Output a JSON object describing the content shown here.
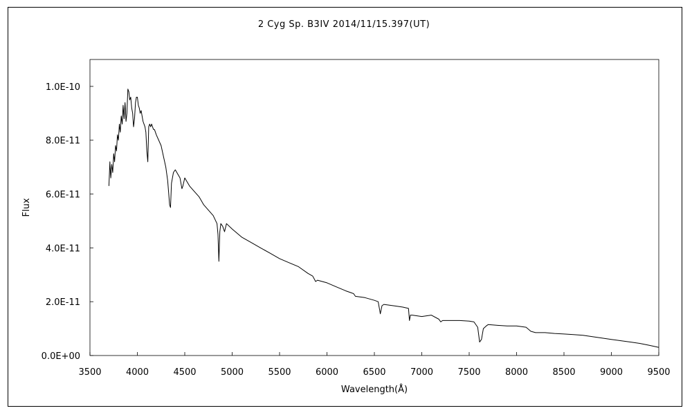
{
  "chart_data": {
    "type": "line",
    "title": "2 Cyg    Sp. B3IV    2014/11/15.397(UT)",
    "xlabel": "Wavelength(Å)",
    "ylabel": "Flux",
    "xlim": [
      3500,
      9500
    ],
    "ylim": [
      0,
      1.1e-10
    ],
    "x_ticks": [
      3500,
      4000,
      4500,
      5000,
      5500,
      6000,
      6500,
      7000,
      7500,
      8000,
      8500,
      9000,
      9500
    ],
    "x_tick_labels": [
      "3500",
      "4000",
      "4500",
      "5000",
      "5500",
      "6000",
      "6500",
      "7000",
      "7500",
      "8000",
      "8500",
      "9000",
      "9500"
    ],
    "y_ticks": [
      0,
      2e-11,
      4e-11,
      6e-11,
      8e-11,
      1e-10
    ],
    "y_tick_labels": [
      "0.0E+00",
      "2.0E-11",
      "4.0E-11",
      "6.0E-11",
      "8.0E-11",
      "1.0E-10"
    ],
    "grid": false,
    "series": [
      {
        "name": "",
        "color": "#000000",
        "x": [
          3700,
          3710,
          3720,
          3730,
          3740,
          3750,
          3760,
          3770,
          3780,
          3790,
          3800,
          3810,
          3820,
          3830,
          3840,
          3850,
          3860,
          3870,
          3880,
          3890,
          3900,
          3910,
          3920,
          3930,
          3940,
          3950,
          3960,
          3970,
          3980,
          3990,
          4000,
          4010,
          4020,
          4030,
          4040,
          4050,
          4060,
          4070,
          4080,
          4090,
          4100,
          4110,
          4120,
          4130,
          4140,
          4150,
          4160,
          4170,
          4180,
          4200,
          4250,
          4300,
          4320,
          4340,
          4350,
          4360,
          4380,
          4400,
          4450,
          4470,
          4480,
          4500,
          4550,
          4600,
          4650,
          4700,
          4750,
          4800,
          4840,
          4850,
          4860,
          4870,
          4880,
          4900,
          4920,
          4940,
          5000,
          5100,
          5200,
          5300,
          5400,
          5500,
          5600,
          5700,
          5800,
          5850,
          5880,
          5900,
          6000,
          6100,
          6200,
          6280,
          6300,
          6400,
          6500,
          6540,
          6563,
          6580,
          6600,
          6700,
          6800,
          6860,
          6870,
          6880,
          6900,
          7000,
          7100,
          7180,
          7200,
          7220,
          7300,
          7400,
          7500,
          7550,
          7590,
          7610,
          7630,
          7650,
          7680,
          7700,
          7800,
          7900,
          8000,
          8100,
          8150,
          8200,
          8300,
          8400,
          8500,
          8600,
          8700,
          8800,
          8900,
          9000,
          9100,
          9200,
          9300,
          9400,
          9500
        ],
        "y": [
          6.3e-11,
          7.2e-11,
          6.6e-11,
          7.1e-11,
          6.8e-11,
          7.5e-11,
          7.2e-11,
          7.8e-11,
          7.6e-11,
          8.2e-11,
          8e-11,
          8.6e-11,
          8.3e-11,
          8.9e-11,
          8.6e-11,
          9.3e-11,
          8.8e-11,
          9.4e-11,
          8.7e-11,
          9e-11,
          9.9e-11,
          9.8e-11,
          9.5e-11,
          9.6e-11,
          9.2e-11,
          9e-11,
          8.5e-11,
          8.8e-11,
          9.4e-11,
          9.6e-11,
          9.6e-11,
          9.3e-11,
          9.2e-11,
          9e-11,
          9.1e-11,
          8.9e-11,
          8.7e-11,
          8.6e-11,
          8.5e-11,
          8.3e-11,
          7.6e-11,
          7.2e-11,
          8.5e-11,
          8.6e-11,
          8.5e-11,
          8.6e-11,
          8.5e-11,
          8.4e-11,
          8.4e-11,
          8.2e-11,
          7.8e-11,
          7e-11,
          6.5e-11,
          5.6e-11,
          5.5e-11,
          6.4e-11,
          6.8e-11,
          6.9e-11,
          6.6e-11,
          6.2e-11,
          6.3e-11,
          6.6e-11,
          6.3e-11,
          6.1e-11,
          5.9e-11,
          5.6e-11,
          5.4e-11,
          5.2e-11,
          4.9e-11,
          4.5e-11,
          3.5e-11,
          4.6e-11,
          4.9e-11,
          4.8e-11,
          4.6e-11,
          4.9e-11,
          4.7e-11,
          4.4e-11,
          4.2e-11,
          4e-11,
          3.8e-11,
          3.6e-11,
          3.45e-11,
          3.3e-11,
          3.05e-11,
          2.95e-11,
          2.75e-11,
          2.8e-11,
          2.7e-11,
          2.55e-11,
          2.4e-11,
          2.3e-11,
          2.2e-11,
          2.15e-11,
          2.05e-11,
          2e-11,
          1.55e-11,
          1.85e-11,
          1.9e-11,
          1.85e-11,
          1.8e-11,
          1.75e-11,
          1.3e-11,
          1.5e-11,
          1.5e-11,
          1.45e-11,
          1.5e-11,
          1.35e-11,
          1.25e-11,
          1.3e-11,
          1.3e-11,
          1.3e-11,
          1.28e-11,
          1.25e-11,
          1.05e-11,
          5e-12,
          6e-12,
          1e-11,
          1.1e-11,
          1.15e-11,
          1.12e-11,
          1.1e-11,
          1.1e-11,
          1.05e-11,
          9e-12,
          8.5e-12,
          8.5e-12,
          8.2e-12,
          8e-12,
          7.8e-12,
          7.5e-12,
          7e-12,
          6.5e-12,
          6e-12,
          5.5e-12,
          5e-12,
          4.5e-12,
          3.8e-12,
          3e-12
        ]
      }
    ]
  }
}
